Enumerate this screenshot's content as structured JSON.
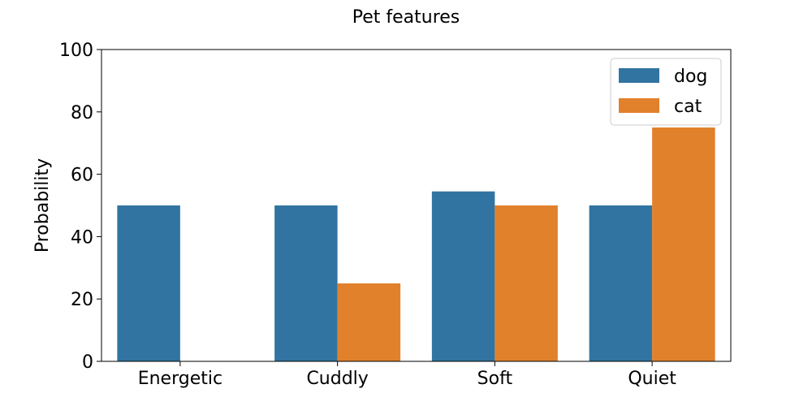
{
  "chart_data": {
    "type": "bar",
    "title": "Pet features",
    "xlabel": "",
    "ylabel": "Probability",
    "ylim": [
      0,
      100
    ],
    "yticks": [
      0,
      20,
      40,
      60,
      80,
      100
    ],
    "categories": [
      "Energetic",
      "Cuddly",
      "Soft",
      "Quiet"
    ],
    "series": [
      {
        "name": "dog",
        "color": "#3274a1",
        "values": [
          50,
          50,
          54.5,
          50
        ]
      },
      {
        "name": "cat",
        "color": "#e1812c",
        "values": [
          0,
          25,
          50,
          75
        ]
      }
    ],
    "legend_position": "top-right",
    "grid": false
  }
}
